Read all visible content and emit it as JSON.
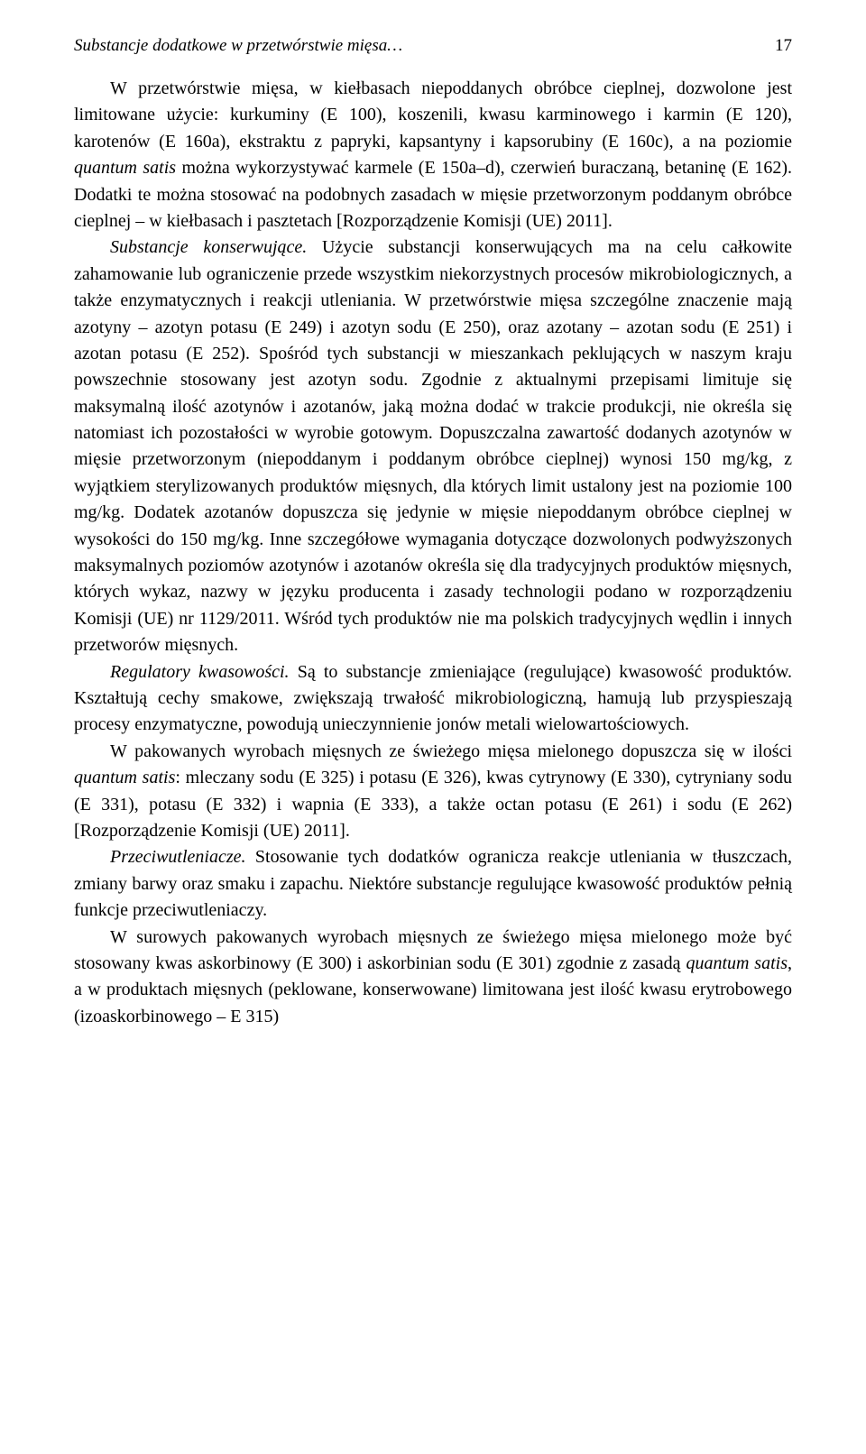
{
  "header": {
    "running_title": "Substancje dodatkowe w przetwórstwie mięsa…",
    "page_number": "17"
  },
  "content": {
    "p1": "W przetwórstwie mięsa, w kiełbasach niepoddanych obróbce cieplnej, dozwolone jest limitowane użycie: kurkuminy (E 100), koszenili, kwasu karminowego i karmin (E 120), karotenów (E 160a), ekstraktu z papryki, kapsantyny i kapsorubiny (E 160c), a na poziomie ",
    "p1_term": "quantum satis",
    "p1_b": " można wykorzystywać karmele (E 150a–d), czerwień buraczaną, betaninę (E 162). Dodatki te można stosować na podobnych zasadach w mięsie przetworzonym poddanym obróbce cieplnej – w kiełbasach i pasztetach [Rozporządzenie Komisji (UE) 2011].",
    "p2_label": "Substancje konserwujące.",
    "p2": " Użycie substancji konserwujących ma na celu całkowite zahamowanie lub ograniczenie przede wszystkim niekorzystnych procesów mikrobiologicznych, a także enzymatycznych i reakcji utleniania. W przetwórstwie mięsa szczególne znaczenie mają azotyny – azotyn potasu (E 249) i azotyn sodu (E 250), oraz azotany – azotan sodu (E 251) i azotan potasu (E 252). Spośród tych substancji w mieszankach peklujących w naszym kraju powszechnie stosowany jest azotyn sodu. Zgodnie z aktualnymi przepisami limituje się maksymalną ilość azotynów i azotanów, jaką można dodać w trakcie produkcji, nie określa się natomiast ich pozostałości w wyrobie gotowym. Dopuszczalna zawartość dodanych azotynów w mięsie przetworzonym (niepoddanym i poddanym obróbce cieplnej) wynosi 150 mg/kg, z wyjątkiem sterylizowanych produktów mięsnych, dla których limit ustalony jest na poziomie 100 mg/kg. Dodatek azotanów dopuszcza się jedynie w mięsie niepoddanym obróbce cieplnej w wysokości do 150 mg/kg. Inne szczegółowe wymagania dotyczące dozwolonych podwyższonych maksymalnych poziomów azotynów i azotanów określa się dla tradycyjnych produktów mięsnych, których wykaz, nazwy w języku producenta i zasady technologii podano w rozporządzeniu Komisji (UE) nr 1129/2011. Wśród tych produktów nie ma polskich tradycyjnych wędlin i innych przetworów mięsnych.",
    "p3_label": "Regulatory kwasowości.",
    "p3": " Są to substancje zmieniające (regulujące) kwasowość produktów. Kształtują cechy smakowe, zwiększają trwałość mikrobiologiczną, hamują lub przyspieszają procesy enzymatyczne, powodują unieczynnienie jonów metali wielowartościowych.",
    "p4_a": "W pakowanych wyrobach mięsnych ze świeżego mięsa mielonego dopuszcza się w ilości ",
    "p4_term": "quantum satis",
    "p4_b": ": mleczany sodu (E 325) i potasu (E 326), kwas cytrynowy (E 330), cytryniany sodu (E 331), potasu (E 332) i wapnia (E 333), a także octan potasu (E 261) i sodu (E 262) [Rozporządzenie Komisji (UE) 2011].",
    "p5_label": "Przeciwutleniacze.",
    "p5": " Stosowanie tych dodatków ogranicza reakcje utleniania w tłuszczach, zmiany barwy oraz smaku i zapachu. Niektóre substancje regulujące kwasowość produktów pełnią funkcje przeciwutleniaczy.",
    "p6_a": "W surowych pakowanych wyrobach mięsnych ze świeżego mięsa mielonego może być stosowany kwas askorbinowy (E 300) i askorbinian sodu (E 301) zgodnie z zasadą ",
    "p6_term": "quantum satis",
    "p6_b": ", a w produktach mięsnych (peklowane, konserwowane) limitowana jest ilość kwasu erytrobowego (izoaskorbinowego – E 315)"
  }
}
